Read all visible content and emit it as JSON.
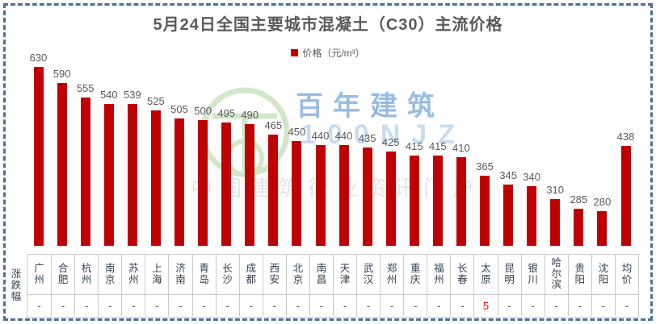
{
  "page": {
    "border_color": "#4e6f96",
    "background": "#FFFFFF"
  },
  "header": {
    "title": "5月24日全国主要城市混凝土（C30）主流价格"
  },
  "legend": {
    "label": "价格（元/m³）",
    "marker_color": "#C00000"
  },
  "watermark": {
    "logo": "green-ring-logo",
    "brand": "百年建筑",
    "brand_code": "100NJZ",
    "slogan": "中国建筑行业资讯门户"
  },
  "table": {
    "row_label": "涨跌幅",
    "change_highlight_color": "#FF0000"
  },
  "chart_data": {
    "type": "bar",
    "title": "5月24日全国主要城市混凝土（C30）主流价格",
    "legend_entries": [
      "价格（元/m³）"
    ],
    "legend_position": "top",
    "bar_color": "#C00000",
    "grid": false,
    "value_labels": true,
    "ylabel": "价格（元/m³）",
    "ylim": [
      196,
      650
    ],
    "categories": [
      "广州",
      "合肥",
      "杭州",
      "南京",
      "苏州",
      "上海",
      "济南",
      "青岛",
      "长沙",
      "成都",
      "西安",
      "北京",
      "南昌",
      "天津",
      "武汉",
      "郑州",
      "重庆",
      "福州",
      "长春",
      "太原",
      "昆明",
      "银川",
      "哈尔滨",
      "贵阳",
      "沈阳",
      "均价"
    ],
    "values": [
      630,
      590,
      555,
      540,
      539,
      525,
      505,
      500,
      495,
      490,
      465,
      450,
      440,
      440,
      435,
      425,
      415,
      415,
      410,
      365,
      345,
      340,
      310,
      285,
      280,
      438
    ],
    "changes": [
      "-",
      "-",
      "-",
      "-",
      "-",
      "-",
      "-",
      "-",
      "-",
      "-",
      "-",
      "-",
      "-",
      "-",
      "-",
      "-",
      "-",
      "-",
      "-",
      "5",
      "-",
      "-",
      "-",
      "-",
      "-",
      "-"
    ]
  }
}
